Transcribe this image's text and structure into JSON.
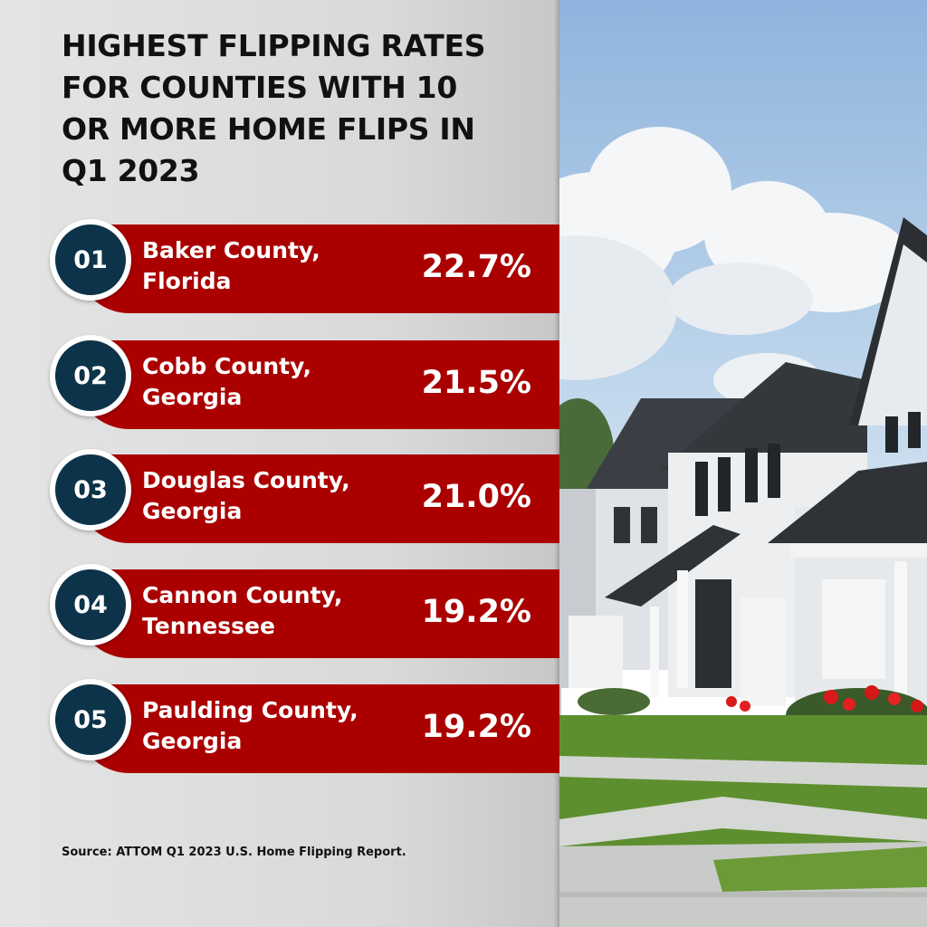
{
  "title_lines": [
    "HIGHEST FLIPPING RATES",
    "FOR COUNTIES WITH 10",
    "OR MORE HOME FLIPS IN",
    "Q1 2023"
  ],
  "chart_data": {
    "type": "table",
    "categories": [
      "Baker County, Florida",
      "Cobb County, Georgia",
      "Douglas County, Georgia",
      "Cannon County, Tennessee",
      "Paulding County, Georgia"
    ],
    "values": [
      22.7,
      21.5,
      21.0,
      19.2,
      19.2
    ]
  },
  "rows": [
    {
      "rank": "01",
      "line1": "Baker County,",
      "line2": "Florida",
      "rate": "22.7%"
    },
    {
      "rank": "02",
      "line1": "Cobb County,",
      "line2": "Georgia",
      "rate": "21.5%"
    },
    {
      "rank": "03",
      "line1": "Douglas County,",
      "line2": "Georgia",
      "rate": "21.0%"
    },
    {
      "rank": "04",
      "line1": "Cannon County,",
      "line2": "Tennessee",
      "rate": "19.2%"
    },
    {
      "rank": "05",
      "line1": "Paulding County,",
      "line2": "Georgia",
      "rate": "19.2%"
    }
  ],
  "source": "Source: ATTOM Q1 2023 U.S. Home Flipping Report.",
  "colors": {
    "bar": "#aa0000",
    "badge": "#0c3349",
    "text": "#111111"
  }
}
